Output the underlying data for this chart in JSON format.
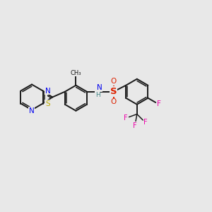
{
  "background_color": "#e8e8e8",
  "bond_color": "#1a1a1a",
  "N_color": "#0000ee",
  "S_thiazole_color": "#bbaa00",
  "S_sulfonamide_color": "#dd2200",
  "F_color": "#ee00aa",
  "H_color": "#448888",
  "figsize": [
    3.0,
    3.0
  ],
  "dpi": 100,
  "xlim": [
    0,
    12
  ],
  "ylim": [
    1,
    9
  ]
}
